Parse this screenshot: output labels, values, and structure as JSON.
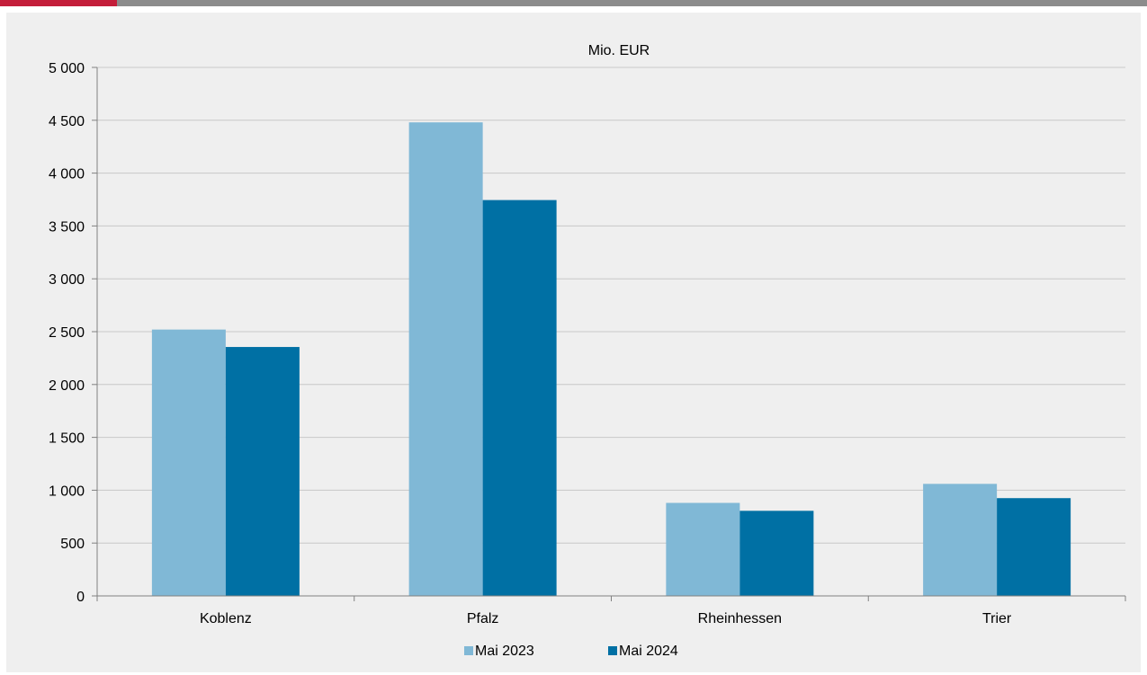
{
  "chart_data": {
    "type": "bar",
    "unit_label": "Mio. EUR",
    "categories": [
      "Koblenz",
      "Pfalz",
      "Rheinhessen",
      "Trier"
    ],
    "series": [
      {
        "name": "Mai 2023",
        "color": "#80b8d6",
        "values": [
          2520,
          4480,
          880,
          1060
        ]
      },
      {
        "name": "Mai 2024",
        "color": "#0070a4",
        "values": [
          2355,
          3745,
          805,
          925
        ]
      }
    ],
    "ylim": [
      0,
      5000
    ],
    "yticks": [
      0,
      500,
      1000,
      1500,
      2000,
      2500,
      3000,
      3500,
      4000,
      4500,
      5000
    ],
    "ytick_labels": [
      "0",
      "500",
      "1 000",
      "1 500",
      "2 000",
      "2 500",
      "3 000",
      "3 500",
      "4 000",
      "4 500",
      "5 000"
    ],
    "grid": true,
    "legend_position": "bottom-center"
  }
}
